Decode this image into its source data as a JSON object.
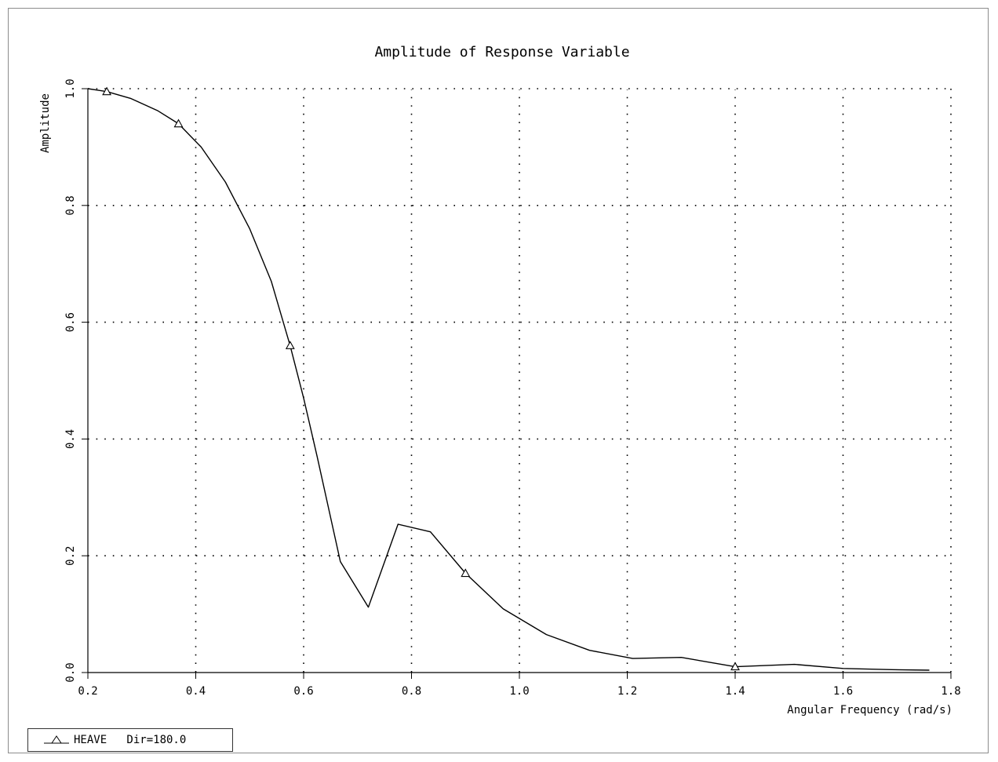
{
  "chart_data": {
    "type": "line",
    "title": "Amplitude of Response Variable",
    "xlabel": "Angular Frequency (rad/s)",
    "ylabel": "Amplitude",
    "xlim": [
      0.2,
      1.8
    ],
    "ylim": [
      0.0,
      1.0
    ],
    "x_ticks": [
      0.2,
      0.4,
      0.6,
      0.8,
      1.0,
      1.2,
      1.4,
      1.6,
      1.8
    ],
    "y_ticks": [
      0.0,
      0.2,
      0.4,
      0.6,
      0.8,
      1.0
    ],
    "x_tick_labels": [
      "0.2",
      "0.4",
      "0.6",
      "0.8",
      "1.0",
      "1.2",
      "1.4",
      "1.6",
      "1.8"
    ],
    "y_tick_labels": [
      "0.0",
      "0.2",
      "0.4",
      "0.6",
      "0.8",
      "1.0"
    ],
    "grid": true,
    "legend_position": "bottom-left",
    "series": [
      {
        "name": "HEAVE   Dir=180.0",
        "marker": "triangle",
        "color": "#000000",
        "x": [
          0.2,
          0.235,
          0.28,
          0.33,
          0.368,
          0.41,
          0.455,
          0.5,
          0.54,
          0.575,
          0.6,
          0.625,
          0.668,
          0.72,
          0.775,
          0.835,
          0.9,
          0.97,
          1.05,
          1.13,
          1.21,
          1.3,
          1.4,
          1.51,
          1.6,
          1.69,
          1.76
        ],
        "y": [
          1.0,
          0.995,
          0.983,
          0.962,
          0.94,
          0.9,
          0.84,
          0.76,
          0.67,
          0.56,
          0.47,
          0.37,
          0.19,
          0.112,
          0.254,
          0.241,
          0.17,
          0.109,
          0.065,
          0.038,
          0.024,
          0.026,
          0.01,
          0.014,
          0.007,
          0.005,
          0.004
        ],
        "markers_x": [
          0.235,
          0.368,
          0.575,
          0.9,
          1.4
        ],
        "markers_y": [
          0.995,
          0.94,
          0.56,
          0.17,
          0.01
        ]
      }
    ]
  },
  "legend": {
    "text": "HEAVE   Dir=180.0"
  }
}
